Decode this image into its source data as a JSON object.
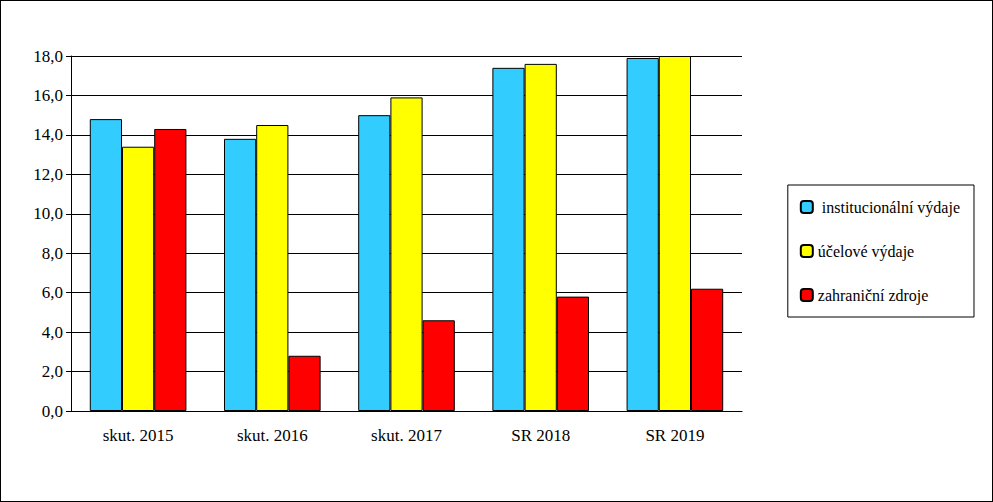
{
  "chart_data": {
    "type": "bar",
    "categories": [
      "skut. 2015",
      "skut. 2016",
      "skut. 2017",
      "SR 2018",
      "SR 2019"
    ],
    "series": [
      {
        "name": " institucionální výdaje",
        "color": "#33ccff",
        "values": [
          14.8,
          13.8,
          15.0,
          17.4,
          17.9
        ]
      },
      {
        "name": "účelové výdaje",
        "color": "#ffff00",
        "values": [
          13.4,
          14.5,
          15.9,
          17.6,
          18.0
        ]
      },
      {
        "name": "zahraniční zdroje",
        "color": "#ff0000",
        "values": [
          14.3,
          2.8,
          4.6,
          5.8,
          6.2
        ]
      }
    ],
    "ylim": [
      0,
      18
    ],
    "yticks": [
      {
        "value": 0,
        "label": "0,0"
      },
      {
        "value": 2,
        "label": "2,0"
      },
      {
        "value": 4,
        "label": "4,0"
      },
      {
        "value": 6,
        "label": "6,0"
      },
      {
        "value": 8,
        "label": "8,0"
      },
      {
        "value": 10,
        "label": "10,0"
      },
      {
        "value": 12,
        "label": "12,0"
      },
      {
        "value": 14,
        "label": "14,0"
      },
      {
        "value": 16,
        "label": "16,0"
      },
      {
        "value": 18,
        "label": "18,0"
      }
    ],
    "grid": true,
    "legend": "right"
  }
}
